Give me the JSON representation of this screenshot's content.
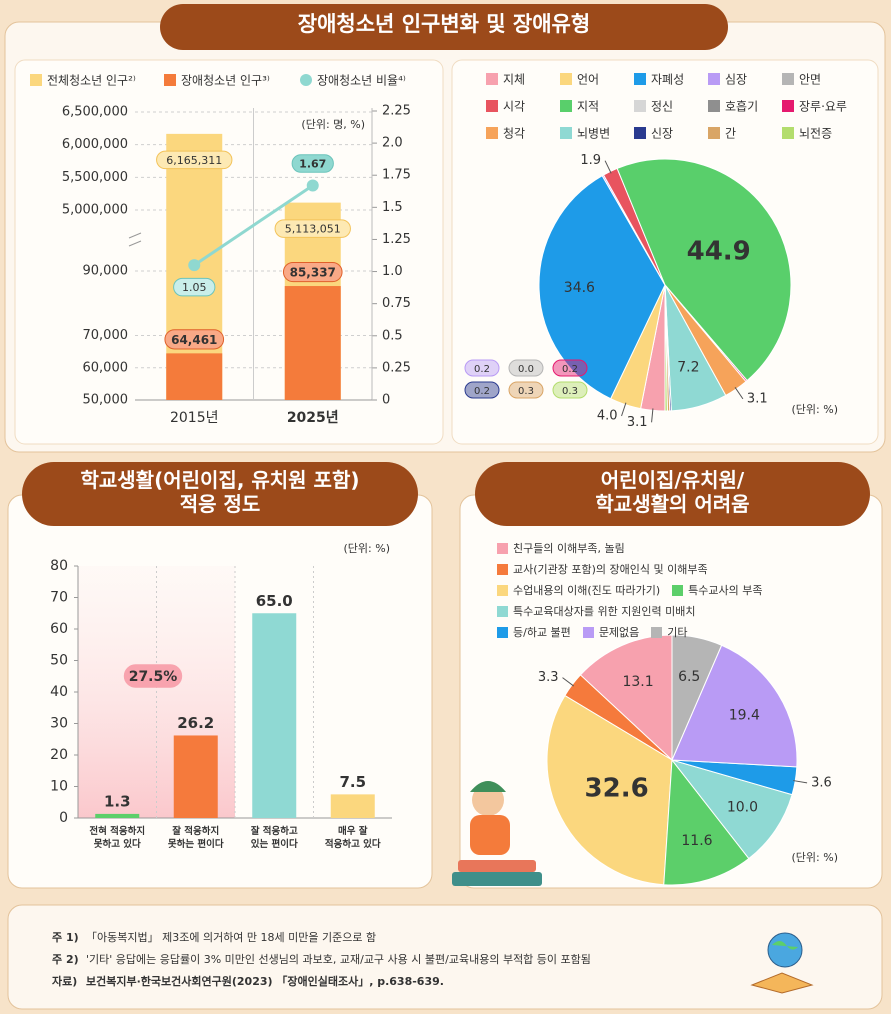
{
  "chart_data": [
    {
      "type": "bar",
      "title": "장애청소년 인구변화 및 장애유형",
      "unit": "(단위: 명, %)",
      "categories": [
        "2015년",
        "2025년"
      ],
      "series": [
        {
          "name": "전체청소년 인구²⁾",
          "color": "#fbd77e",
          "values": [
            6165311,
            5113051
          ],
          "value_labels": [
            "6,165,311",
            "5,113,051"
          ]
        },
        {
          "name": "장애청소년 인구³⁾",
          "color": "#f47b3b",
          "values": [
            64461,
            85337
          ],
          "value_labels": [
            "64,461",
            "85,337"
          ]
        },
        {
          "name": "장애청소년 비율⁴⁾",
          "type": "line",
          "axis": "y2",
          "color": "#8fd8d0",
          "values": [
            1.05,
            1.67
          ]
        }
      ],
      "ylim": [
        50000,
        6500000
      ],
      "y_break": [
        90000,
        5000000
      ],
      "yticks": [
        {
          "value": 50000,
          "label": "50,000"
        },
        {
          "value": 60000,
          "label": "60,000"
        },
        {
          "value": 70000,
          "label": "70,000"
        },
        {
          "value": 90000,
          "label": "90,000"
        },
        {
          "value": 5000000,
          "label": "5,000,000"
        },
        {
          "value": 5500000,
          "label": "5,500,000"
        },
        {
          "value": 6000000,
          "label": "6,000,000"
        },
        {
          "value": 6500000,
          "label": "6,500,000"
        }
      ],
      "y2lim": [
        0,
        2.25
      ],
      "y2ticks": [
        0,
        0.25,
        0.5,
        0.75,
        {
          "value": 1,
          "label": "1.0"
        },
        1.25,
        1.5,
        1.75,
        {
          "value": 2,
          "label": "2.0"
        },
        2.25
      ],
      "grid": true
    },
    {
      "type": "pie",
      "unit": "(단위: %)",
      "clockwise": true,
      "categories": [
        "지체",
        "언어",
        "자폐성",
        "심장",
        "안면",
        "시각",
        "지적",
        "정신",
        "호흡기",
        "장루·요루",
        "청각",
        "뇌병변",
        "신장",
        "간",
        "뇌전증"
      ],
      "colors": [
        "#f7a1ae",
        "#fbd77e",
        "#1e9be8",
        "#b99bf5",
        "#b5b5b5",
        "#e8545f",
        "#59cf6b",
        "#d6d6d6",
        "#8f8f8f",
        "#e5196e",
        "#f6a35a",
        "#8fd9d3",
        "#2a3a8f",
        "#d9a566",
        "#b3dd6d"
      ],
      "values": [
        3.1,
        4.0,
        34.6,
        0.2,
        0.0,
        1.9,
        44.9,
        null,
        null,
        0.2,
        3.1,
        7.2,
        0.2,
        0.3,
        0.3
      ],
      "value_labels": [
        "3.1",
        "4.0",
        "34.6",
        "0.2",
        "0.0",
        "1.9",
        "44.9",
        null,
        null,
        "0.2",
        "3.1",
        "7.2",
        "0.2",
        "0.3",
        "0.3"
      ]
    },
    {
      "type": "bar",
      "title": "학교생활(어린이집, 유치원 포함)\n적응 정도",
      "unit": "(단위: %)",
      "categories": [
        "전혀 적응하지\n못하고 있다",
        "잘 적응하지\n못하는 편이다",
        "잘 적응하고\n있는 편이다",
        "매우 잘\n적응하고 있다"
      ],
      "values": [
        1.3,
        26.2,
        65.0,
        7.5
      ],
      "value_labels": [
        "1.3",
        "26.2",
        "65.0",
        "7.5"
      ],
      "colors": [
        "#5ccf6a",
        "#f57a3c",
        "#8fd9d3",
        "#fbd77e"
      ],
      "ylim": [
        0,
        80
      ],
      "yticks": [
        0,
        10,
        20,
        30,
        40,
        50,
        60,
        70,
        80
      ],
      "annotation": "27.5%",
      "grid": false
    },
    {
      "type": "pie",
      "title": "어린이집/유치원/\n학교생활의 어려움",
      "unit": "(단위: %)",
      "clockwise": false,
      "categories": [
        "친구들의 이해부족, 놀림",
        "교사(기관장 포함)의 장애인식 및 이해부족",
        "수업내용의 이해(진도 따라가기)",
        "특수교사의 부족",
        "특수교육대상자를 위한 지원인력 미배치",
        "등/하교 불편",
        "문제없음",
        "기타"
      ],
      "colors": [
        "#f7a1ae",
        "#f57a3c",
        "#fbd77e",
        "#5ccf6a",
        "#8fd9d3",
        "#1e9be8",
        "#b99bf5",
        "#b5b5b5"
      ],
      "values": [
        13.1,
        3.3,
        32.6,
        11.6,
        10.0,
        3.6,
        19.4,
        6.5
      ],
      "value_labels": [
        "13.1",
        "3.3",
        "32.6",
        "11.6",
        "10.0",
        "3.6",
        "19.4",
        "6.5"
      ]
    }
  ],
  "notes": [
    {
      "label": "주 1)",
      "text": "「아동복지법」 제3조에 의거하여 만 18세 미만을 기준으로 함"
    },
    {
      "label": "주 2)",
      "text": "'기타' 응답에는 응답률이 3% 미만인 선생님의 과보호, 교재/교구 사용 시 불편/교육내용의 부적합 등이 포함됨"
    }
  ],
  "source": {
    "label": "자료)",
    "text": "보건복지부·한국보건사회연구원(2023) 「장애인실태조사」, p.638-639."
  }
}
